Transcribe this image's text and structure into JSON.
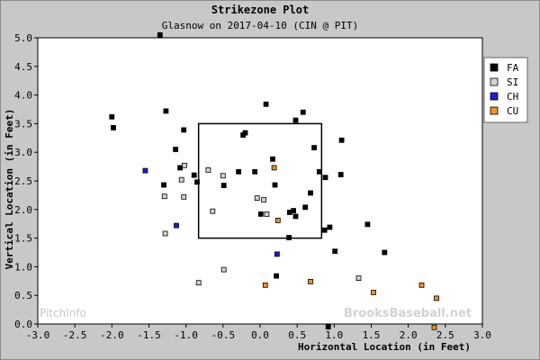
{
  "chart_data": {
    "type": "scatter",
    "title": "Strikezone Plot",
    "subtitle": "Glasnow on 2017-04-10 (CIN @ PIT)",
    "xlabel": "Horizontal Location (in Feet)",
    "ylabel": "Vertical Location (in Feet)",
    "xlim": [
      -3.0,
      3.0
    ],
    "ylim": [
      0.0,
      5.0
    ],
    "xticks": [
      "-3.0",
      "-2.5",
      "-2.0",
      "-1.5",
      "-1.0",
      "-0.5",
      "0.0",
      "0.5",
      "1.0",
      "1.5",
      "2.0",
      "2.5",
      "3.0"
    ],
    "yticks": [
      "0.0",
      "0.5",
      "1.0",
      "1.5",
      "2.0",
      "2.5",
      "3.0",
      "3.5",
      "4.0",
      "4.5",
      "5.0"
    ],
    "grid": false,
    "legend_position": "right",
    "strike_zone": {
      "x": [
        -0.83,
        0.83
      ],
      "y": [
        1.5,
        3.5
      ]
    },
    "watermarks": {
      "left": "PitchInfo",
      "right": "BrooksBaseball.net"
    },
    "series": [
      {
        "name": "FA",
        "color": "#000000",
        "points": [
          [
            -1.35,
            5.05
          ],
          [
            0.08,
            3.84
          ],
          [
            0.58,
            3.7
          ],
          [
            0.48,
            3.56
          ],
          [
            -2.0,
            3.62
          ],
          [
            -1.27,
            3.72
          ],
          [
            -1.98,
            3.43
          ],
          [
            -1.03,
            3.39
          ],
          [
            -0.2,
            3.34
          ],
          [
            -0.23,
            3.3
          ],
          [
            1.1,
            3.21
          ],
          [
            0.73,
            3.08
          ],
          [
            -1.14,
            3.05
          ],
          [
            0.17,
            2.88
          ],
          [
            -1.08,
            2.73
          ],
          [
            -0.29,
            2.66
          ],
          [
            -0.07,
            2.66
          ],
          [
            0.8,
            2.66
          ],
          [
            -0.89,
            2.6
          ],
          [
            1.09,
            2.61
          ],
          [
            0.88,
            2.56
          ],
          [
            -0.85,
            2.48
          ],
          [
            -0.49,
            2.42
          ],
          [
            0.2,
            2.43
          ],
          [
            -1.3,
            2.43
          ],
          [
            0.68,
            2.29
          ],
          [
            0.61,
            2.04
          ],
          [
            0.01,
            1.92
          ],
          [
            0.45,
            1.98
          ],
          [
            0.4,
            1.95
          ],
          [
            0.48,
            1.88
          ],
          [
            1.45,
            1.74
          ],
          [
            0.94,
            1.69
          ],
          [
            0.87,
            1.64
          ],
          [
            0.39,
            1.51
          ],
          [
            1.01,
            1.27
          ],
          [
            1.68,
            1.25
          ],
          [
            0.22,
            0.84
          ],
          [
            0.92,
            -0.05
          ]
        ]
      },
      {
        "name": "SI",
        "color": "#d3d3d3",
        "points": [
          [
            -0.7,
            2.69
          ],
          [
            -1.02,
            2.77
          ],
          [
            -1.06,
            2.52
          ],
          [
            -0.5,
            2.59
          ],
          [
            -1.29,
            2.23
          ],
          [
            -1.03,
            2.22
          ],
          [
            0.05,
            2.17
          ],
          [
            -0.04,
            2.2
          ],
          [
            -0.64,
            1.97
          ],
          [
            -1.28,
            1.58
          ],
          [
            1.33,
            0.8
          ],
          [
            -0.49,
            0.95
          ],
          [
            -0.83,
            0.72
          ],
          [
            0.09,
            1.92
          ]
        ]
      },
      {
        "name": "CH",
        "color": "#1f1fd0",
        "points": [
          [
            -1.55,
            2.68
          ],
          [
            -1.13,
            1.72
          ],
          [
            0.23,
            1.22
          ]
        ]
      },
      {
        "name": "CU",
        "color": "#e8942c",
        "points": [
          [
            0.19,
            2.73
          ],
          [
            0.24,
            1.81
          ],
          [
            0.07,
            0.68
          ],
          [
            0.68,
            0.74
          ],
          [
            1.53,
            0.55
          ],
          [
            2.18,
            0.68
          ],
          [
            2.38,
            0.45
          ],
          [
            2.35,
            -0.06
          ]
        ]
      }
    ]
  }
}
